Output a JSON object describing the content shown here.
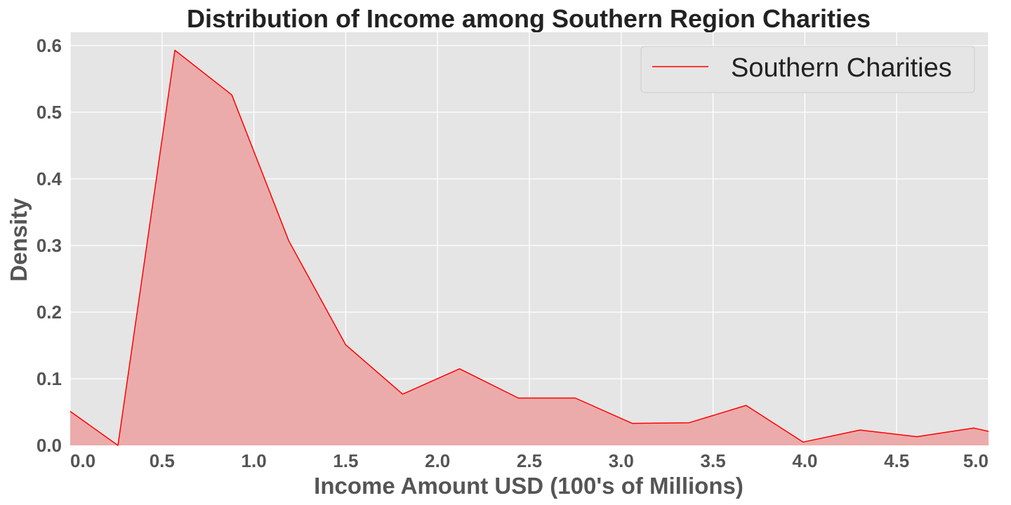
{
  "chart_data": {
    "type": "area",
    "title": "Distribution of Income among Southern Region Charities",
    "xlabel": "Income Amount USD (100's of Millions)",
    "ylabel": "Density",
    "xlim": [
      0.0,
      5.0
    ],
    "ylim": [
      0.0,
      0.62
    ],
    "x_ticks": [
      "0.0",
      "0.5",
      "1.0",
      "1.5",
      "2.0",
      "2.5",
      "3.0",
      "3.5",
      "4.0",
      "4.5",
      "5.0"
    ],
    "y_ticks": [
      "0.0",
      "0.1",
      "0.2",
      "0.3",
      "0.4",
      "0.5",
      "0.6"
    ],
    "grid": true,
    "legend_position": "top-right",
    "series": [
      {
        "name": "Southern Charities",
        "line_color": "#ff0000",
        "fill_color": "#ecabab",
        "x": [
          0.0,
          0.26,
          0.57,
          0.88,
          1.19,
          1.5,
          1.81,
          2.12,
          2.44,
          2.75,
          3.06,
          3.37,
          3.68,
          3.99,
          4.3,
          4.61,
          4.92,
          5.0
        ],
        "y": [
          0.051,
          0.0,
          0.593,
          0.526,
          0.307,
          0.151,
          0.077,
          0.115,
          0.071,
          0.071,
          0.033,
          0.034,
          0.06,
          0.005,
          0.023,
          0.013,
          0.026,
          0.021
        ]
      }
    ]
  },
  "colors": {
    "plot_background": "#e5e5e5",
    "grid": "#ffffff",
    "legend_border": "#cccccc"
  }
}
